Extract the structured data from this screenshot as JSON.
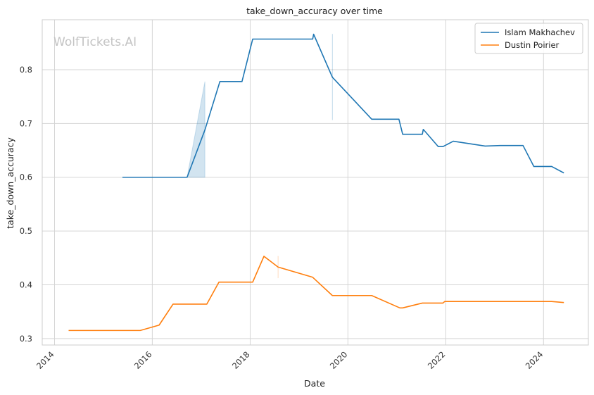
{
  "chart_data": {
    "type": "line",
    "title": "take_down_accuracy over time",
    "xlabel": "Date",
    "ylabel": "take_down_accuracy",
    "watermark": "WolfTickets.AI",
    "xlim": [
      "2013-10-01",
      "2024-12-01"
    ],
    "ylim": [
      0.288,
      0.893
    ],
    "x_ticks": [
      "2014",
      "2016",
      "2018",
      "2020",
      "2022",
      "2024"
    ],
    "y_ticks": [
      "0.3",
      "0.4",
      "0.5",
      "0.6",
      "0.7",
      "0.8"
    ],
    "grid": true,
    "legend_position": "top-right",
    "colors": {
      "islam": "#1f77b4",
      "dustin": "#ff7f0e",
      "grid": "#d5d5d5",
      "frame": "#cccccc"
    },
    "series": [
      {
        "name": "Islam Makhachev",
        "color": "#1f77b4",
        "points": [
          [
            "2015-05-23",
            0.6
          ],
          [
            "2015-11-01",
            0.6
          ],
          [
            "2016-09-17",
            0.6
          ],
          [
            "2017-01-28",
            0.688
          ],
          [
            "2017-05-20",
            0.778
          ],
          [
            "2017-11-01",
            0.778
          ],
          [
            "2018-01-20",
            0.857
          ],
          [
            "2018-10-06",
            0.857
          ],
          [
            "2019-04-13",
            0.857
          ],
          [
            "2019-04-20",
            0.866
          ],
          [
            "2019-09-07",
            0.786
          ],
          [
            "2020-06-27",
            0.708
          ],
          [
            "2021-01-16",
            0.708
          ],
          [
            "2021-02-13",
            0.68
          ],
          [
            "2021-07-10",
            0.68
          ],
          [
            "2021-07-17",
            0.689
          ],
          [
            "2021-11-06",
            0.657
          ],
          [
            "2021-12-11",
            0.657
          ],
          [
            "2022-02-26",
            0.667
          ],
          [
            "2022-10-22",
            0.658
          ],
          [
            "2023-02-11",
            0.659
          ],
          [
            "2023-08-01",
            0.659
          ],
          [
            "2023-10-21",
            0.62
          ],
          [
            "2024-03-02",
            0.62
          ],
          [
            "2024-06-01",
            0.608
          ]
        ],
        "bands": [
          {
            "points": [
              [
                "2016-09-17",
                0.6,
                0.6
              ],
              [
                "2017-01-28",
                0.6,
                0.778
              ]
            ]
          },
          {
            "points": [
              [
                "2019-09-07",
                0.707,
                0.866
              ],
              [
                "2019-09-08",
                0.707,
                0.866
              ]
            ]
          }
        ]
      },
      {
        "name": "Dustin Poirier",
        "color": "#ff7f0e",
        "points": [
          [
            "2014-04-16",
            0.315
          ],
          [
            "2015-10-03",
            0.315
          ],
          [
            "2016-02-21",
            0.325
          ],
          [
            "2016-06-04",
            0.364
          ],
          [
            "2017-02-11",
            0.364
          ],
          [
            "2017-05-13",
            0.405
          ],
          [
            "2018-01-20",
            0.405
          ],
          [
            "2018-04-14",
            0.453
          ],
          [
            "2018-07-28",
            0.433
          ],
          [
            "2019-04-13",
            0.414
          ],
          [
            "2019-09-07",
            0.38
          ],
          [
            "2020-06-27",
            0.38
          ],
          [
            "2021-01-23",
            0.357
          ],
          [
            "2021-02-13",
            0.357
          ],
          [
            "2021-07-10",
            0.366
          ],
          [
            "2021-12-11",
            0.366
          ],
          [
            "2021-12-24",
            0.369
          ],
          [
            "2022-11-12",
            0.369
          ],
          [
            "2023-07-29",
            0.369
          ],
          [
            "2024-03-02",
            0.369
          ],
          [
            "2024-06-01",
            0.367
          ]
        ],
        "bands": [
          {
            "points": [
              [
                "2018-07-28",
                0.413,
                0.453
              ],
              [
                "2018-07-29",
                0.413,
                0.453
              ]
            ]
          }
        ]
      }
    ]
  }
}
